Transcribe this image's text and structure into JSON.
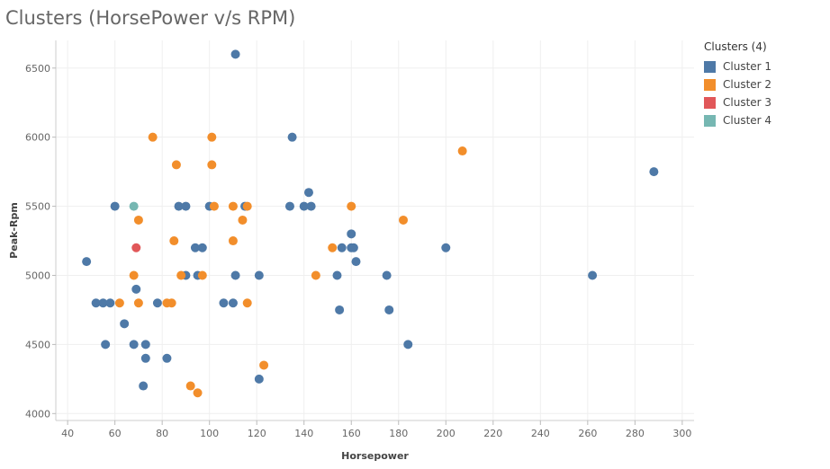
{
  "chart_data": {
    "type": "scatter",
    "title": "Clusters (HorsePower v/s RPM)",
    "xlabel": "Horsepower",
    "ylabel": "Peak-Rpm",
    "xlim": [
      35,
      305
    ],
    "ylim": [
      3950,
      6700
    ],
    "xticks": [
      40,
      60,
      80,
      100,
      120,
      140,
      160,
      180,
      200,
      220,
      240,
      260,
      280,
      300
    ],
    "yticks": [
      4000,
      4500,
      5000,
      5500,
      6000,
      6500
    ],
    "grid": true,
    "legend_title": "Clusters (4)",
    "legend_position": "right",
    "series": [
      {
        "name": "Cluster 1",
        "color": "#4e79a7",
        "points": [
          [
            111,
            6600
          ],
          [
            135,
            6000
          ],
          [
            142,
            5600
          ],
          [
            60,
            5500
          ],
          [
            87,
            5500
          ],
          [
            90,
            5500
          ],
          [
            100,
            5500
          ],
          [
            115,
            5500
          ],
          [
            134,
            5500
          ],
          [
            140,
            5500
          ],
          [
            143,
            5500
          ],
          [
            288,
            5750
          ],
          [
            200,
            5200
          ],
          [
            160,
            5300
          ],
          [
            156,
            5200
          ],
          [
            160,
            5200
          ],
          [
            161,
            5200
          ],
          [
            162,
            5100
          ],
          [
            94,
            5200
          ],
          [
            97,
            5200
          ],
          [
            48,
            5100
          ],
          [
            69,
            4900
          ],
          [
            90,
            5000
          ],
          [
            95,
            5000
          ],
          [
            111,
            5000
          ],
          [
            121,
            5000
          ],
          [
            154,
            5000
          ],
          [
            175,
            5000
          ],
          [
            262,
            5000
          ],
          [
            52,
            4800
          ],
          [
            55,
            4800
          ],
          [
            58,
            4800
          ],
          [
            78,
            4800
          ],
          [
            106,
            4800
          ],
          [
            110,
            4800
          ],
          [
            155,
            4750
          ],
          [
            176,
            4750
          ],
          [
            64,
            4650
          ],
          [
            56,
            4500
          ],
          [
            68,
            4500
          ],
          [
            73,
            4500
          ],
          [
            184,
            4500
          ],
          [
            73,
            4400
          ],
          [
            82,
            4400
          ],
          [
            72,
            4200
          ],
          [
            121,
            4250
          ]
        ]
      },
      {
        "name": "Cluster 2",
        "color": "#f28e2b",
        "points": [
          [
            76,
            6000
          ],
          [
            101,
            6000
          ],
          [
            207,
            5900
          ],
          [
            86,
            5800
          ],
          [
            101,
            5800
          ],
          [
            102,
            5500
          ],
          [
            110,
            5500
          ],
          [
            116,
            5500
          ],
          [
            160,
            5500
          ],
          [
            70,
            5400
          ],
          [
            114,
            5400
          ],
          [
            182,
            5400
          ],
          [
            85,
            5250
          ],
          [
            110,
            5250
          ],
          [
            152,
            5200
          ],
          [
            68,
            5000
          ],
          [
            88,
            5000
          ],
          [
            97,
            5000
          ],
          [
            145,
            5000
          ],
          [
            62,
            4800
          ],
          [
            70,
            4800
          ],
          [
            82,
            4800
          ],
          [
            84,
            4800
          ],
          [
            116,
            4800
          ],
          [
            123,
            4350
          ],
          [
            92,
            4200
          ],
          [
            95,
            4150
          ]
        ]
      },
      {
        "name": "Cluster 3",
        "color": "#e15759",
        "points": [
          [
            69,
            5200
          ]
        ]
      },
      {
        "name": "Cluster 4",
        "color": "#76b7b2",
        "points": [
          [
            68,
            5500
          ]
        ]
      }
    ]
  }
}
